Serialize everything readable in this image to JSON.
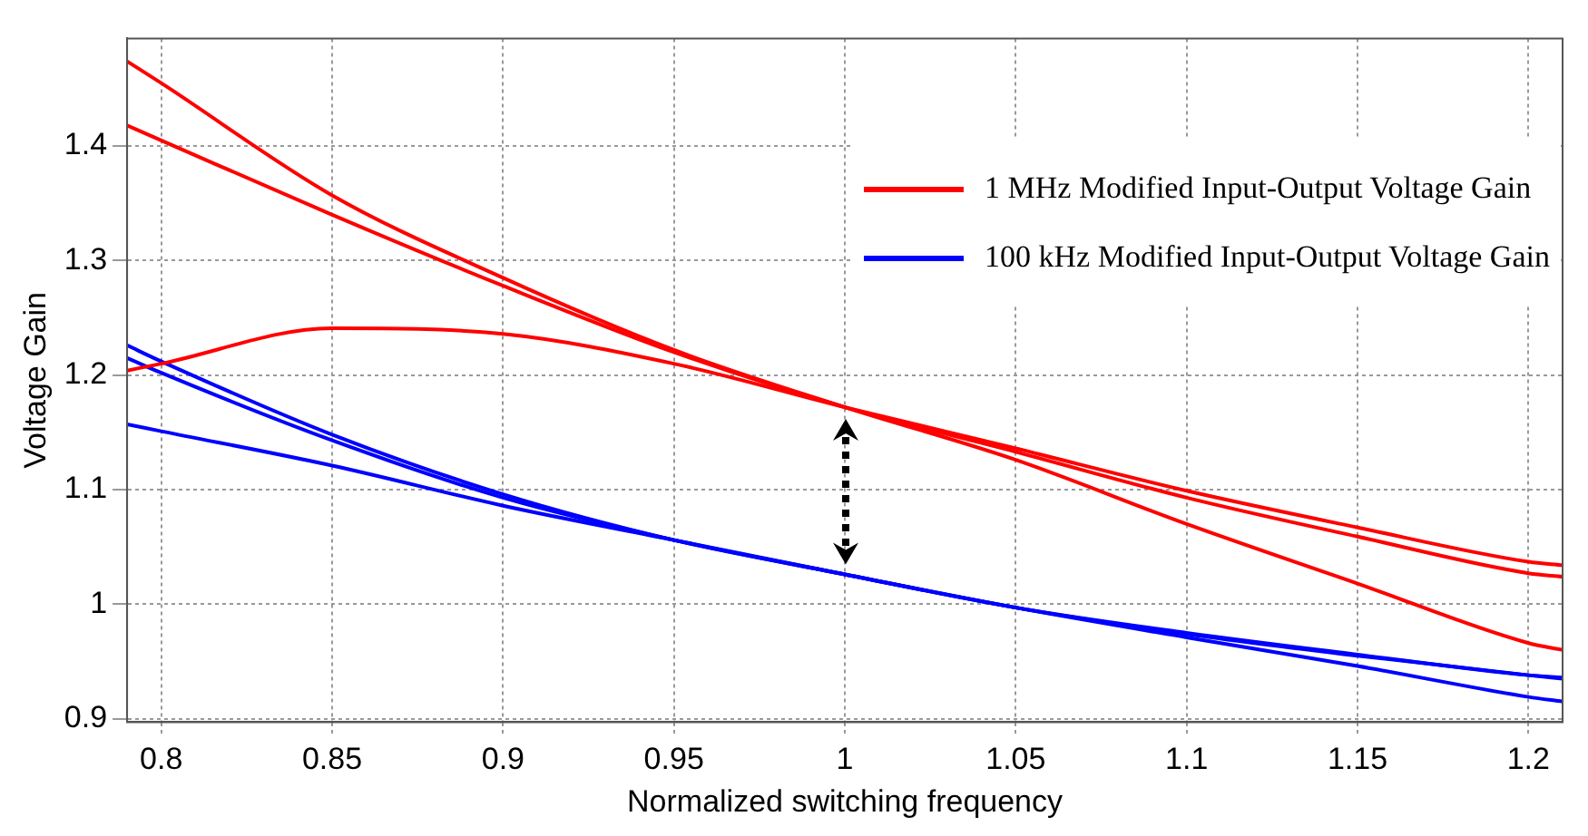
{
  "chart_data": {
    "type": "line",
    "xlabel": "Normalized switching frequency",
    "ylabel": "Voltage Gain",
    "xlim": [
      0.79,
      1.21
    ],
    "ylim": [
      0.897,
      1.494
    ],
    "xticks": [
      0.8,
      0.85,
      0.9,
      0.95,
      1,
      1.05,
      1.1,
      1.15,
      1.2
    ],
    "yticks": [
      0.9,
      1,
      1.1,
      1.2,
      1.3,
      1.4
    ],
    "grid": true,
    "legend": "top right",
    "marker": "none",
    "line_style": "solid",
    "x": [
      0.79,
      0.8,
      0.85,
      0.9,
      0.95,
      1.0,
      1.05,
      1.1,
      1.15,
      1.2,
      1.21
    ],
    "series": [
      {
        "name": "1 MHz Modified Input-Output Voltage Gain",
        "color": "#ff0000",
        "values": [
          1.474,
          1.455,
          1.357,
          1.285,
          1.222,
          1.172,
          1.126,
          1.07,
          1.018,
          0.966,
          0.96
        ]
      },
      {
        "color": "#ff0000",
        "values": [
          1.418,
          1.405,
          1.34,
          1.278,
          1.22,
          1.172,
          1.133,
          1.093,
          1.059,
          1.027,
          1.024
        ]
      },
      {
        "color": "#ff0000",
        "values": [
          1.204,
          1.21,
          1.241,
          1.236,
          1.21,
          1.172,
          1.136,
          1.099,
          1.067,
          1.037,
          1.034
        ]
      },
      {
        "name": "100 kHz Modified Input-Output Voltage Gain",
        "color": "#0000ff",
        "values": [
          1.226,
          1.212,
          1.148,
          1.096,
          1.056,
          1.026,
          0.997,
          0.975,
          0.956,
          0.938,
          0.936
        ]
      },
      {
        "color": "#0000ff",
        "values": [
          1.215,
          1.202,
          1.143,
          1.093,
          1.056,
          1.026,
          0.997,
          0.971,
          0.946,
          0.919,
          0.915
        ]
      },
      {
        "color": "#0000ff",
        "values": [
          1.157,
          1.151,
          1.121,
          1.086,
          1.056,
          1.026,
          0.997,
          0.974,
          0.955,
          0.938,
          0.935
        ]
      }
    ]
  }
}
